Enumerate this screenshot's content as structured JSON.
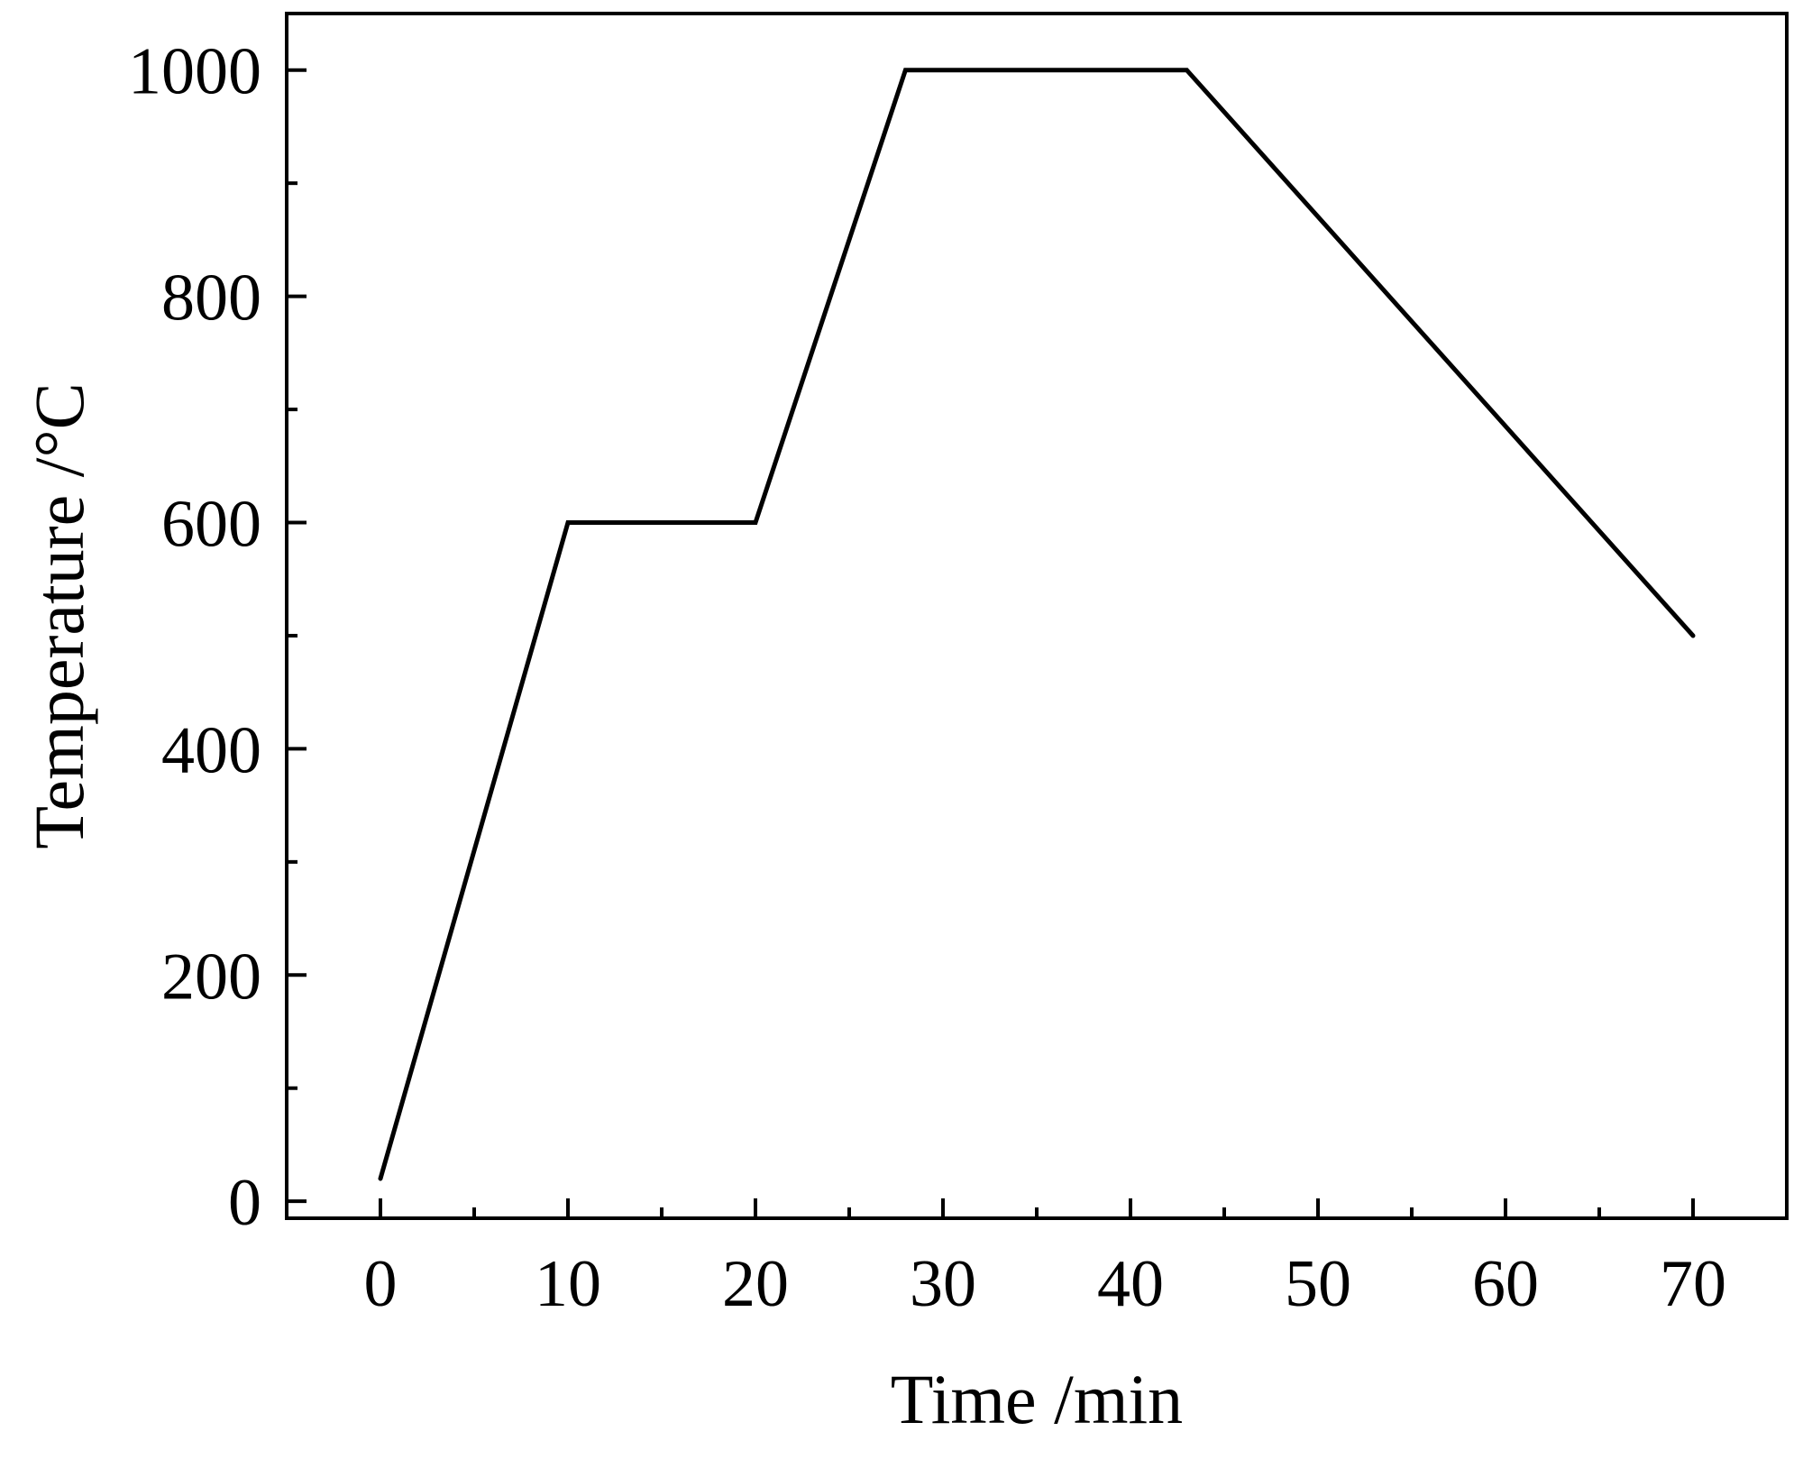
{
  "chart_data": {
    "type": "line",
    "title": "",
    "xlabel": "Time /min",
    "ylabel": "Temperature /°C",
    "xlim": [
      -5,
      75
    ],
    "ylim": [
      -15,
      1050
    ],
    "xticks": [
      0,
      10,
      20,
      30,
      40,
      50,
      60,
      70
    ],
    "xticks_minor": [
      5,
      15,
      25,
      35,
      45,
      55,
      65
    ],
    "yticks": [
      0,
      200,
      400,
      600,
      800,
      1000
    ],
    "yticks_minor": [
      100,
      300,
      500,
      700,
      900
    ],
    "grid": false,
    "legend": "none",
    "series": [
      {
        "color": "#000000",
        "x": [
          0,
          10,
          20,
          28,
          43,
          70
        ],
        "y": [
          20,
          600,
          600,
          1000,
          1000,
          500
        ]
      }
    ]
  }
}
